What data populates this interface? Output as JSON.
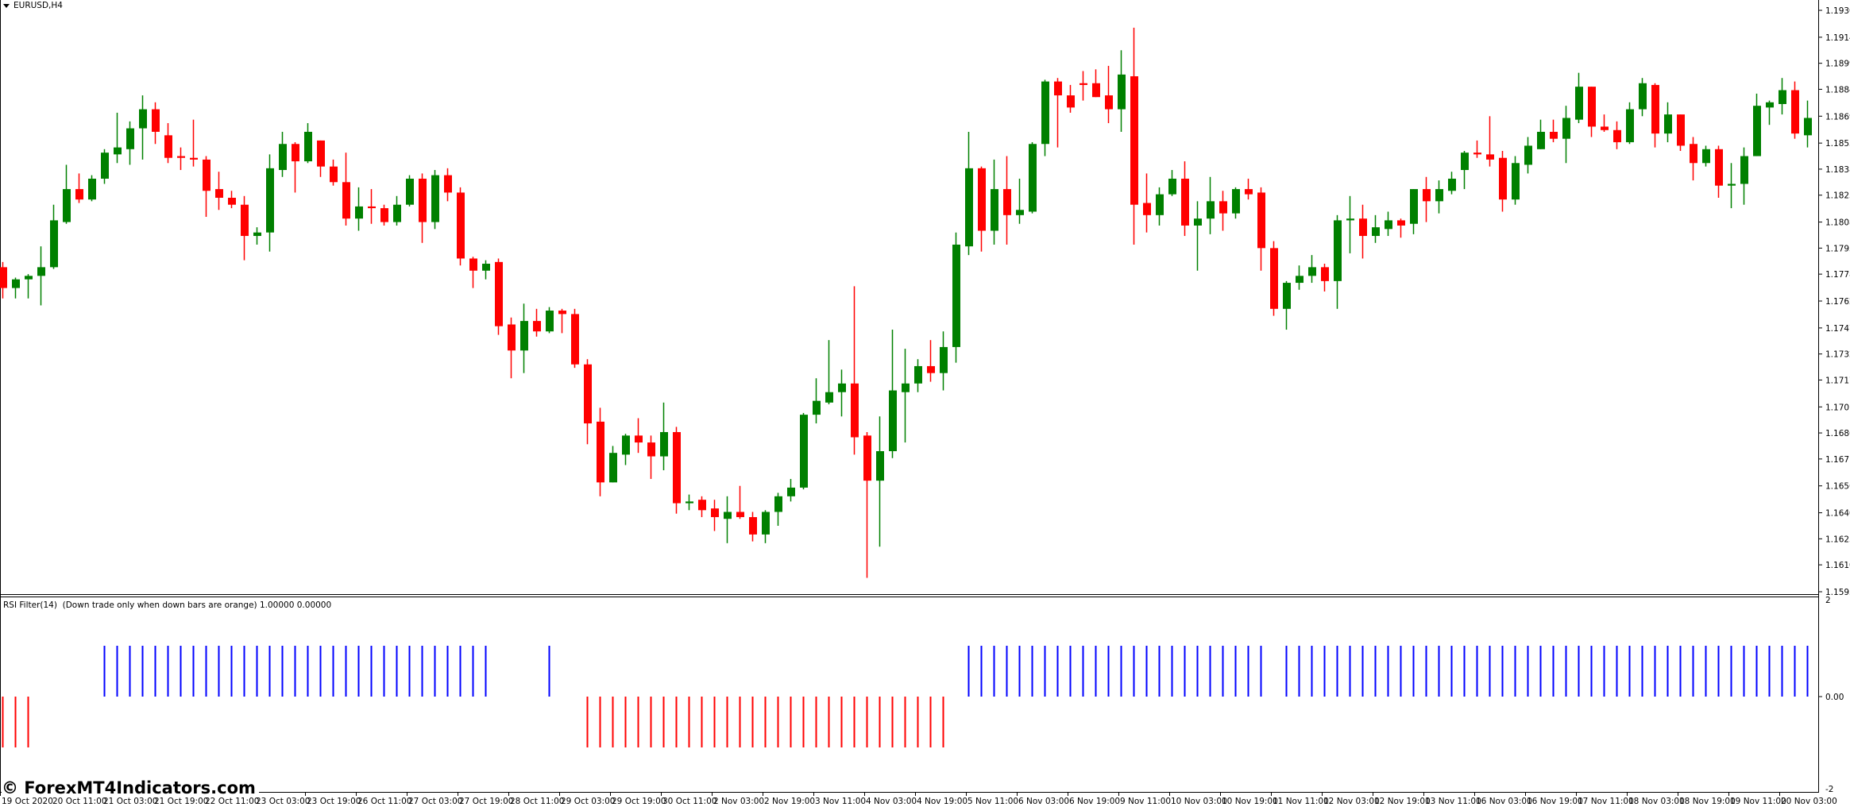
{
  "window": {
    "symbol_title": "EURUSD,H4"
  },
  "indicator": {
    "title": "RSI Filter(14)  (Down trade only when down bars are orange) 1.00000 0.00000",
    "scale_labels": [
      "2",
      "0.00",
      "-2"
    ]
  },
  "watermark": "© ForexMT4Indicators.com",
  "colors": {
    "bull": "#008000",
    "bear": "#ff0000",
    "up_signal": "#0000ff",
    "down_signal": "#ff0000",
    "background": "#ffffff",
    "axis": "#000000"
  },
  "chart_data": {
    "type": "candlestick",
    "symbol": "EURUSD",
    "timeframe": "H4",
    "ylim": [
      1.1595,
      1.193
    ],
    "price_ticks": [
      "1.19300",
      "1.19145",
      "1.18995",
      "1.18845",
      "1.18690",
      "1.18535",
      "1.18385",
      "1.18235",
      "1.18080",
      "1.17930",
      "1.17780",
      "1.17625",
      "1.17470",
      "1.17320",
      "1.17170",
      "1.17015",
      "1.16865",
      "1.16715",
      "1.16560",
      "1.16405",
      "1.16255",
      "1.16105",
      "1.15950"
    ],
    "time_ticks": [
      "19 Oct 2020",
      "20 Oct 11:00",
      "21 Oct 03:00",
      "21 Oct 19:00",
      "22 Oct 11:00",
      "23 Oct 03:00",
      "23 Oct 19:00",
      "26 Oct 11:00",
      "27 Oct 03:00",
      "27 Oct 19:00",
      "28 Oct 11:00",
      "29 Oct 03:00",
      "29 Oct 19:00",
      "30 Oct 11:00",
      "2 Nov 03:00",
      "2 Nov 19:00",
      "3 Nov 11:00",
      "4 Nov 03:00",
      "4 Nov 19:00",
      "5 Nov 11:00",
      "6 Nov 03:00",
      "6 Nov 19:00",
      "9 Nov 11:00",
      "10 Nov 03:00",
      "10 Nov 19:00",
      "11 Nov 11:00",
      "12 Nov 03:00",
      "12 Nov 19:00",
      "13 Nov 11:00",
      "16 Nov 03:00",
      "16 Nov 19:00",
      "17 Nov 11:00",
      "18 Nov 03:00",
      "18 Nov 19:00",
      "19 Nov 11:00",
      "20 Nov 03:00"
    ],
    "ohlc_fields": [
      "open",
      "high",
      "low",
      "close"
    ],
    "candles": [
      [
        1.1782,
        1.1785,
        1.1764,
        1.177
      ],
      [
        1.177,
        1.1776,
        1.1764,
        1.1775
      ],
      [
        1.1775,
        1.1778,
        1.1764,
        1.1777
      ],
      [
        1.1777,
        1.1794,
        1.176,
        1.1782
      ],
      [
        1.1782,
        1.1818,
        1.1781,
        1.1809
      ],
      [
        1.1808,
        1.1841,
        1.1807,
        1.1827
      ],
      [
        1.1827,
        1.1836,
        1.1819,
        1.1821
      ],
      [
        1.1821,
        1.1835,
        1.182,
        1.1833
      ],
      [
        1.1833,
        1.185,
        1.183,
        1.1848
      ],
      [
        1.1847,
        1.1871,
        1.1842,
        1.1851
      ],
      [
        1.185,
        1.1866,
        1.1841,
        1.1862
      ],
      [
        1.1862,
        1.1881,
        1.1844,
        1.1873
      ],
      [
        1.1873,
        1.1877,
        1.1853,
        1.186
      ],
      [
        1.1858,
        1.1865,
        1.1842,
        1.1845
      ],
      [
        1.1846,
        1.1851,
        1.1838,
        1.1845
      ],
      [
        1.1845,
        1.1867,
        1.184,
        1.1844
      ],
      [
        1.1844,
        1.1846,
        1.1811,
        1.1826
      ],
      [
        1.1827,
        1.1837,
        1.1815,
        1.1822
      ],
      [
        1.1822,
        1.1826,
        1.1816,
        1.1818
      ],
      [
        1.1818,
        1.1823,
        1.1786,
        1.18
      ],
      [
        1.18,
        1.1805,
        1.1795,
        1.1802
      ],
      [
        1.1802,
        1.1847,
        1.1791,
        1.1839
      ],
      [
        1.1838,
        1.186,
        1.1834,
        1.1853
      ],
      [
        1.1853,
        1.1854,
        1.1825,
        1.1843
      ],
      [
        1.1843,
        1.1865,
        1.1842,
        1.186
      ],
      [
        1.1855,
        1.1855,
        1.1834,
        1.184
      ],
      [
        1.184,
        1.1844,
        1.1829,
        1.1831
      ],
      [
        1.1831,
        1.1848,
        1.1806,
        1.181
      ],
      [
        1.181,
        1.1828,
        1.1803,
        1.1817
      ],
      [
        1.1817,
        1.1827,
        1.1807,
        1.1816
      ],
      [
        1.1816,
        1.1818,
        1.1806,
        1.1808
      ],
      [
        1.1808,
        1.1823,
        1.1806,
        1.1818
      ],
      [
        1.1818,
        1.1835,
        1.1817,
        1.1833
      ],
      [
        1.1833,
        1.1836,
        1.1796,
        1.1808
      ],
      [
        1.1808,
        1.1838,
        1.1804,
        1.1835
      ],
      [
        1.1835,
        1.1839,
        1.182,
        1.1825
      ],
      [
        1.1825,
        1.1828,
        1.1783,
        1.1787
      ],
      [
        1.1787,
        1.1788,
        1.177,
        1.178
      ],
      [
        1.178,
        1.1786,
        1.1775,
        1.1784
      ],
      [
        1.1785,
        1.1787,
        1.1743,
        1.1748
      ],
      [
        1.1749,
        1.1753,
        1.1718,
        1.1734
      ],
      [
        1.1734,
        1.1761,
        1.1721,
        1.1751
      ],
      [
        1.1751,
        1.1758,
        1.1742,
        1.1745
      ],
      [
        1.1745,
        1.1759,
        1.1744,
        1.1757
      ],
      [
        1.1757,
        1.1758,
        1.1744,
        1.1755
      ],
      [
        1.1755,
        1.1758,
        1.1724,
        1.1726
      ],
      [
        1.1726,
        1.1729,
        1.168,
        1.1692
      ],
      [
        1.1693,
        1.1701,
        1.165,
        1.1658
      ],
      [
        1.1658,
        1.1679,
        1.1658,
        1.1675
      ],
      [
        1.1674,
        1.1686,
        1.1668,
        1.1685
      ],
      [
        1.1685,
        1.1695,
        1.1675,
        1.1681
      ],
      [
        1.1681,
        1.1685,
        1.166,
        1.1673
      ],
      [
        1.1673,
        1.1704,
        1.1665,
        1.1687
      ],
      [
        1.1687,
        1.169,
        1.164,
        1.1646
      ],
      [
        1.1646,
        1.1651,
        1.1642,
        1.1647
      ],
      [
        1.1648,
        1.165,
        1.1638,
        1.1642
      ],
      [
        1.1643,
        1.1648,
        1.163,
        1.1638
      ],
      [
        1.1637,
        1.165,
        1.1623,
        1.1641
      ],
      [
        1.1641,
        1.1656,
        1.1637,
        1.1638
      ],
      [
        1.1638,
        1.1641,
        1.1624,
        1.1628
      ],
      [
        1.1628,
        1.1642,
        1.1623,
        1.1641
      ],
      [
        1.1641,
        1.1652,
        1.1633,
        1.165
      ],
      [
        1.165,
        1.166,
        1.1647,
        1.1655
      ],
      [
        1.1655,
        1.1698,
        1.1654,
        1.1697
      ],
      [
        1.1697,
        1.1718,
        1.1692,
        1.1705
      ],
      [
        1.1704,
        1.174,
        1.1703,
        1.171
      ],
      [
        1.171,
        1.1723,
        1.1696,
        1.1715
      ],
      [
        1.1715,
        1.1771,
        1.1674,
        1.1684
      ],
      [
        1.1685,
        1.1687,
        1.1603,
        1.1659
      ],
      [
        1.1659,
        1.1696,
        1.1621,
        1.1676
      ],
      [
        1.1676,
        1.1746,
        1.1672,
        1.1711
      ],
      [
        1.171,
        1.1735,
        1.1681,
        1.1715
      ],
      [
        1.1715,
        1.1729,
        1.171,
        1.1725
      ],
      [
        1.1725,
        1.174,
        1.1716,
        1.1721
      ],
      [
        1.1721,
        1.1745,
        1.1711,
        1.1736
      ],
      [
        1.1736,
        1.1802,
        1.1727,
        1.1795
      ],
      [
        1.1794,
        1.186,
        1.1789,
        1.1839
      ],
      [
        1.1839,
        1.184,
        1.1791,
        1.1803
      ],
      [
        1.1803,
        1.1844,
        1.1795,
        1.1827
      ],
      [
        1.1827,
        1.1846,
        1.1795,
        1.1812
      ],
      [
        1.1812,
        1.1833,
        1.1807,
        1.1815
      ],
      [
        1.1814,
        1.1854,
        1.1813,
        1.1853
      ],
      [
        1.1853,
        1.189,
        1.1846,
        1.1889
      ],
      [
        1.1889,
        1.1891,
        1.1851,
        1.1881
      ],
      [
        1.1881,
        1.1887,
        1.1871,
        1.1874
      ],
      [
        1.1888,
        1.1895,
        1.1878,
        1.1887
      ],
      [
        1.1888,
        1.1896,
        1.188,
        1.188
      ],
      [
        1.1881,
        1.1898,
        1.1865,
        1.1873
      ],
      [
        1.1873,
        1.1907,
        1.186,
        1.1893
      ],
      [
        1.1892,
        1.192,
        1.1795,
        1.1818
      ],
      [
        1.1819,
        1.1836,
        1.1802,
        1.1812
      ],
      [
        1.1812,
        1.1828,
        1.1806,
        1.1824
      ],
      [
        1.1824,
        1.1838,
        1.1823,
        1.1833
      ],
      [
        1.1833,
        1.1843,
        1.18,
        1.1806
      ],
      [
        1.1806,
        1.182,
        1.178,
        1.181
      ],
      [
        1.181,
        1.1834,
        1.1801,
        1.182
      ],
      [
        1.182,
        1.1826,
        1.1803,
        1.1813
      ],
      [
        1.1813,
        1.1828,
        1.181,
        1.1827
      ],
      [
        1.1827,
        1.1833,
        1.1821,
        1.1824
      ],
      [
        1.1825,
        1.1828,
        1.178,
        1.1793
      ],
      [
        1.1793,
        1.1797,
        1.1754,
        1.1758
      ],
      [
        1.1758,
        1.1774,
        1.1746,
        1.1773
      ],
      [
        1.1773,
        1.1783,
        1.1769,
        1.1777
      ],
      [
        1.1777,
        1.1789,
        1.1773,
        1.1782
      ],
      [
        1.1782,
        1.1784,
        1.1768,
        1.1774
      ],
      [
        1.1774,
        1.1812,
        1.1758,
        1.1809
      ],
      [
        1.1809,
        1.1823,
        1.179,
        1.181
      ],
      [
        1.181,
        1.1818,
        1.1787,
        1.18
      ],
      [
        1.18,
        1.1812,
        1.1796,
        1.1805
      ],
      [
        1.1804,
        1.1814,
        1.18,
        1.1809
      ],
      [
        1.1809,
        1.181,
        1.1799,
        1.1806
      ],
      [
        1.1807,
        1.1827,
        1.1801,
        1.1827
      ],
      [
        1.1827,
        1.1834,
        1.1808,
        1.182
      ],
      [
        1.182,
        1.1832,
        1.1813,
        1.1827
      ],
      [
        1.1826,
        1.1837,
        1.1824,
        1.1833
      ],
      [
        1.1838,
        1.1849,
        1.1827,
        1.1848
      ],
      [
        1.1848,
        1.1855,
        1.1845,
        1.1847
      ],
      [
        1.1847,
        1.1869,
        1.184,
        1.1844
      ],
      [
        1.1845,
        1.1849,
        1.1814,
        1.1821
      ],
      [
        1.1821,
        1.1846,
        1.1818,
        1.1842
      ],
      [
        1.1841,
        1.1857,
        1.1836,
        1.1852
      ],
      [
        1.185,
        1.1867,
        1.185,
        1.186
      ],
      [
        1.186,
        1.1867,
        1.1854,
        1.1856
      ],
      [
        1.1856,
        1.1875,
        1.1842,
        1.1868
      ],
      [
        1.1867,
        1.1894,
        1.1865,
        1.1886
      ],
      [
        1.1886,
        1.1886,
        1.1857,
        1.1863
      ],
      [
        1.1863,
        1.187,
        1.186,
        1.1861
      ],
      [
        1.1861,
        1.1866,
        1.185,
        1.1854
      ],
      [
        1.1854,
        1.1877,
        1.1853,
        1.1873
      ],
      [
        1.1873,
        1.1891,
        1.1869,
        1.1888
      ],
      [
        1.1887,
        1.1888,
        1.1851,
        1.1859
      ],
      [
        1.1859,
        1.1877,
        1.1854,
        1.187
      ],
      [
        1.187,
        1.187,
        1.1849,
        1.1852
      ],
      [
        1.1853,
        1.1857,
        1.1832,
        1.1842
      ],
      [
        1.1842,
        1.1852,
        1.184,
        1.185
      ],
      [
        1.185,
        1.1852,
        1.1822,
        1.1829
      ],
      [
        1.1829,
        1.1842,
        1.1816,
        1.183
      ],
      [
        1.183,
        1.1851,
        1.1818,
        1.1846
      ],
      [
        1.1846,
        1.1882,
        1.1846,
        1.1875
      ],
      [
        1.1874,
        1.1878,
        1.1864,
        1.1877
      ],
      [
        1.1876,
        1.1891,
        1.187,
        1.1884
      ],
      [
        1.1884,
        1.1889,
        1.1856,
        1.1859
      ],
      [
        1.1858,
        1.1878,
        1.1851,
        1.1868
      ]
    ],
    "rsi_filter_signal": [
      -1,
      -1,
      -1,
      0,
      0,
      0,
      0,
      0,
      1,
      1,
      1,
      1,
      1,
      1,
      1,
      1,
      1,
      1,
      1,
      1,
      1,
      1,
      1,
      1,
      1,
      1,
      1,
      1,
      1,
      1,
      1,
      1,
      1,
      1,
      1,
      1,
      1,
      1,
      1,
      0,
      0,
      0,
      0,
      1,
      0,
      0,
      -1,
      -1,
      -1,
      -1,
      -1,
      -1,
      -1,
      -1,
      -1,
      -1,
      -1,
      -1,
      -1,
      -1,
      -1,
      -1,
      -1,
      -1,
      -1,
      -1,
      -1,
      -1,
      -1,
      -1,
      -1,
      -1,
      -1,
      -1,
      -1,
      0,
      1,
      1,
      1,
      1,
      1,
      1,
      1,
      1,
      1,
      1,
      1,
      1,
      1,
      1,
      1,
      1,
      1,
      1,
      1,
      1,
      1,
      1,
      1,
      1,
      0,
      1,
      1,
      1,
      1,
      1,
      1,
      1,
      1,
      1,
      1,
      1,
      1,
      1,
      1,
      1,
      1,
      1,
      1,
      1,
      1,
      1,
      1,
      1,
      1,
      1,
      1,
      1,
      1,
      1,
      1,
      1,
      1,
      1,
      1,
      1,
      1,
      1,
      1,
      1,
      1,
      1,
      1
    ],
    "indicator_ylim": [
      -2,
      2
    ]
  }
}
